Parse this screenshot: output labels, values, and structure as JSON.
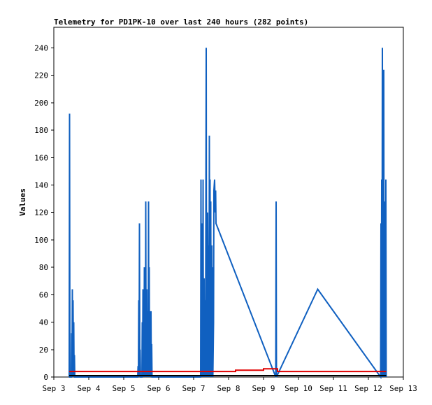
{
  "chart_data": {
    "type": "line",
    "title": "Telemetry for PD1PK-10 over last 240 hours (282 points)",
    "xlabel": "",
    "ylabel": "Values",
    "ylim": [
      0,
      255
    ],
    "yticks": [
      0,
      20,
      40,
      60,
      80,
      100,
      120,
      140,
      160,
      180,
      200,
      220,
      240
    ],
    "xlim": [
      3.0,
      13.0
    ],
    "xticks": [
      {
        "x": 3,
        "label": "Sep 3"
      },
      {
        "x": 4,
        "label": "Sep 4"
      },
      {
        "x": 5,
        "label": "Sep 5"
      },
      {
        "x": 6,
        "label": "Sep 6"
      },
      {
        "x": 7,
        "label": "Sep 7"
      },
      {
        "x": 8,
        "label": "Sep 8"
      },
      {
        "x": 9,
        "label": "Sep 9"
      },
      {
        "x": 10,
        "label": "Sep 10"
      },
      {
        "x": 11,
        "label": "Sep 11"
      },
      {
        "x": 12,
        "label": "Sep 12"
      },
      {
        "x": 13,
        "label": "Sep 13"
      }
    ],
    "grid": false,
    "legend": "none",
    "colors": {
      "series_blue": "#1060c0",
      "series_red": "#e00000",
      "series_black": "#000000"
    },
    "series": [
      {
        "color": "#1060c0",
        "points": [
          [
            3.44,
            0
          ],
          [
            3.45,
            192
          ],
          [
            3.46,
            0
          ],
          [
            3.5,
            0
          ],
          [
            3.51,
            32
          ],
          [
            3.52,
            0
          ],
          [
            3.53,
            64
          ],
          [
            3.54,
            0
          ],
          [
            3.55,
            56
          ],
          [
            3.56,
            16
          ],
          [
            3.57,
            40
          ],
          [
            3.58,
            0
          ],
          [
            3.59,
            16
          ],
          [
            3.6,
            0
          ],
          [
            5.4,
            0
          ],
          [
            5.41,
            8
          ],
          [
            5.42,
            0
          ],
          [
            5.43,
            56
          ],
          [
            5.44,
            0
          ],
          [
            5.45,
            112
          ],
          [
            5.46,
            0
          ],
          [
            5.47,
            20
          ],
          [
            5.48,
            0
          ],
          [
            5.52,
            0
          ],
          [
            5.53,
            40
          ],
          [
            5.54,
            0
          ],
          [
            5.55,
            64
          ],
          [
            5.56,
            0
          ],
          [
            5.57,
            32
          ],
          [
            5.58,
            0
          ],
          [
            5.59,
            80
          ],
          [
            5.6,
            8
          ],
          [
            5.62,
            0
          ],
          [
            5.63,
            128
          ],
          [
            5.64,
            0
          ],
          [
            5.66,
            64
          ],
          [
            5.67,
            0
          ],
          [
            5.69,
            48
          ],
          [
            5.7,
            0
          ],
          [
            5.71,
            128
          ],
          [
            5.72,
            0
          ],
          [
            5.73,
            80
          ],
          [
            5.74,
            0
          ],
          [
            5.75,
            48
          ],
          [
            5.76,
            24
          ],
          [
            5.77,
            0
          ],
          [
            5.78,
            48
          ],
          [
            5.79,
            0
          ],
          [
            5.8,
            24
          ],
          [
            5.81,
            0
          ],
          [
            7.2,
            0
          ],
          [
            7.21,
            144
          ],
          [
            7.22,
            0
          ],
          [
            7.23,
            112
          ],
          [
            7.24,
            0
          ],
          [
            7.25,
            104
          ],
          [
            7.26,
            0
          ],
          [
            7.27,
            144
          ],
          [
            7.28,
            0
          ],
          [
            7.3,
            72
          ],
          [
            7.31,
            0
          ],
          [
            7.33,
            56
          ],
          [
            7.34,
            0
          ],
          [
            7.36,
            240
          ],
          [
            7.37,
            0
          ],
          [
            7.38,
            64
          ],
          [
            7.39,
            0
          ],
          [
            7.4,
            120
          ],
          [
            7.41,
            56
          ],
          [
            7.42,
            0
          ],
          [
            7.43,
            96
          ],
          [
            7.44,
            0
          ],
          [
            7.45,
            176
          ],
          [
            7.46,
            8
          ],
          [
            7.47,
            144
          ],
          [
            7.48,
            0
          ],
          [
            7.49,
            128
          ],
          [
            7.5,
            0
          ],
          [
            7.52,
            96
          ],
          [
            7.53,
            0
          ],
          [
            7.54,
            80
          ],
          [
            7.55,
            0
          ],
          [
            7.57,
            40
          ],
          [
            7.58,
            136
          ],
          [
            7.6,
            144
          ],
          [
            7.62,
            120
          ],
          [
            7.63,
            136
          ],
          [
            7.64,
            112
          ],
          [
            9.35,
            0
          ],
          [
            9.36,
            128
          ],
          [
            9.37,
            0
          ],
          [
            10.55,
            64
          ],
          [
            12.35,
            0
          ],
          [
            12.36,
            112
          ],
          [
            12.37,
            0
          ],
          [
            12.38,
            144
          ],
          [
            12.39,
            0
          ],
          [
            12.4,
            240
          ],
          [
            12.41,
            0
          ],
          [
            12.42,
            120
          ],
          [
            12.43,
            0
          ],
          [
            12.44,
            224
          ],
          [
            12.45,
            0
          ],
          [
            12.46,
            80
          ],
          [
            12.47,
            0
          ],
          [
            12.48,
            128
          ],
          [
            12.49,
            0
          ],
          [
            12.5,
            144
          ],
          [
            12.51,
            0
          ]
        ]
      },
      {
        "color": "#e00000",
        "points": [
          [
            3.44,
            4
          ],
          [
            8.2,
            4
          ],
          [
            8.2,
            5
          ],
          [
            9.0,
            5
          ],
          [
            9.0,
            6
          ],
          [
            9.4,
            6
          ],
          [
            9.4,
            4
          ],
          [
            12.51,
            4
          ]
        ]
      },
      {
        "color": "#000000",
        "points": [
          [
            3.44,
            1
          ],
          [
            12.51,
            1
          ]
        ]
      }
    ]
  }
}
